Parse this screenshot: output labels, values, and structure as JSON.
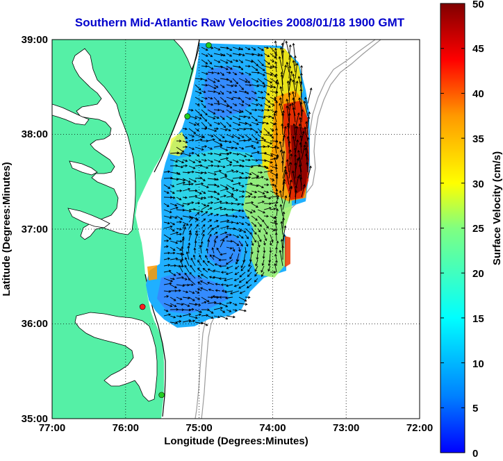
{
  "title": "Southern Mid-Atlantic Raw Velocities 2008/01/18 1900 GMT",
  "xlabel": "Longitude (Degrees:Minutes)",
  "ylabel": "Latitude (Degrees:Minutes)",
  "colorbar_label": "Surface Velocity (cm/s)",
  "colors": {
    "title": "#0000cc",
    "land": "#55f0a6",
    "coastline": "#000000",
    "bathymetry": "#9a9a9a",
    "grid": "#000000",
    "vectors": "#000000",
    "site_active": "#22cc22",
    "site_highlight": "#ff2020"
  },
  "x_ticks": [
    "77:00",
    "76:00",
    "75:00",
    "74:00",
    "73:00",
    "72:00"
  ],
  "y_ticks": [
    "39:00",
    "38:00",
    "37:00",
    "36:00",
    "35:00"
  ],
  "colorbar_ticks": [
    "50",
    "45",
    "40",
    "35",
    "30",
    "25",
    "20",
    "15",
    "10",
    "5",
    "0"
  ],
  "map_extent": {
    "lon_min": -77,
    "lon_max": -72,
    "lat_min": 35,
    "lat_max": 39
  },
  "velocity_range": {
    "min": 0,
    "max": 50,
    "units": "cm/s"
  },
  "colormap": "jet",
  "grid": "dotted",
  "hf_radar_sites": [
    {
      "lon": -74.87,
      "lat": 38.94,
      "color": "green"
    },
    {
      "lon": -75.16,
      "lat": 38.19,
      "color": "green"
    },
    {
      "lon": -75.77,
      "lat": 36.18,
      "color": "red"
    },
    {
      "lon": -75.51,
      "lat": 35.25,
      "color": "green"
    }
  ]
}
